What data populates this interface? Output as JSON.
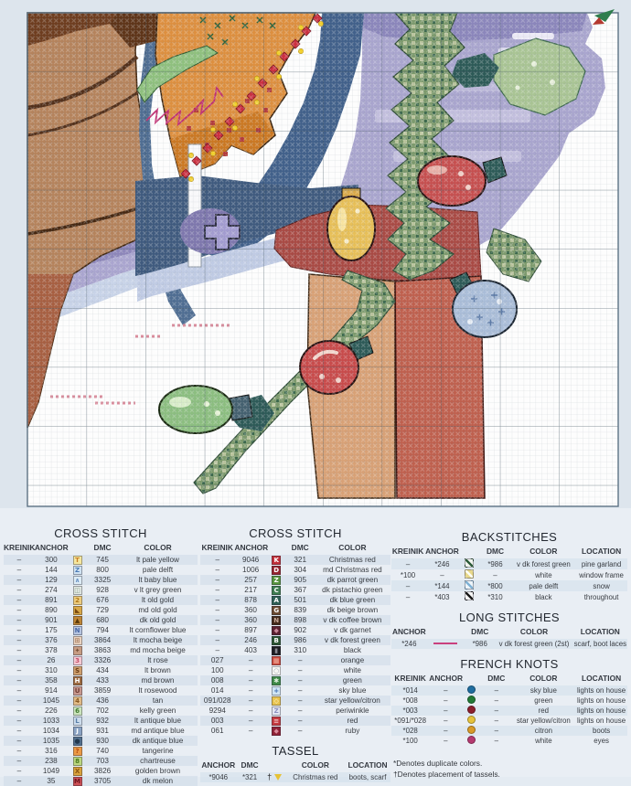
{
  "page_type": "cross stitch pattern leaflet page",
  "pattern": {
    "description": "christmas house corner: tree trunk, lit roof edge, window, pine garland with light bulbs, fence post, snow",
    "corner_marker": "page-corner-arrow",
    "palette": {
      "grid_line": "#6a7a86",
      "grid_major": "#2e4250",
      "snow_white": "#fdfdfd",
      "trunk_brown": "#b5835c",
      "dark_brown": "#6e3d1f",
      "roof_orange": "#dd8f3f",
      "roof_shadow": "#c9751f",
      "steel_blue": "#4f6d92",
      "navy": "#3f5a7e",
      "lavender": "#a9a5ce",
      "periwinkle": "#8b86bb",
      "pale_delft": "#c0cbe4",
      "pine_mid": "#7d9a6d",
      "pine_light": "#b9c49c",
      "pine_dark": "#3c684c",
      "teal": "#2d5a57",
      "maroon": "#a94a44",
      "tan_post": "#d8a176",
      "red_post": "#bf604e",
      "bulb_red": "#c64f4f",
      "bulb_yellow": "#e7bf58",
      "bulb_green": "#8cbe80",
      "bulb_blue": "#aabdd8",
      "string_red": "#cc2f3f",
      "string_yellow": "#f2cf2a",
      "zigzag_magenta": "#bf2f72",
      "pink_marks": "#d98a9a"
    }
  },
  "legend": {
    "cross_stitch_left": {
      "title": "CROSS STITCH",
      "headers": [
        "KREINIK",
        "ANCHOR",
        "",
        "DMC",
        "COLOR"
      ],
      "widths": [
        "16%",
        "17%",
        "10%",
        "16%",
        "41%"
      ],
      "rows": [
        [
          "–",
          "300",
          {
            "s": "T",
            "bg": "#f5e79e",
            "fg": "#c87d28"
          },
          "745",
          "lt pale yellow"
        ],
        [
          "–",
          "144",
          {
            "s": "Z",
            "bg": "#cfe2f2",
            "fg": "#4a7ab5"
          },
          "800",
          "pale delft"
        ],
        [
          "–",
          "129",
          {
            "s": "∧",
            "bg": "#dcebf5",
            "fg": "#6a93c4"
          },
          "3325",
          "lt baby blue"
        ],
        [
          "–",
          "274",
          {
            "s": "◫",
            "bg": "#e3e9e4",
            "fg": "#8aa08f"
          },
          "928",
          "v lt grey green"
        ],
        [
          "–",
          "891",
          {
            "s": "2",
            "bg": "#edcc7e",
            "fg": "#b07818"
          },
          "676",
          "lt old gold"
        ],
        [
          "–",
          "890",
          {
            "s": "◣",
            "bg": "#d9a848",
            "fg": "#7a4a10"
          },
          "729",
          "md old gold"
        ],
        [
          "–",
          "901",
          {
            "s": "▲",
            "bg": "#bf8636",
            "fg": "#5a3808"
          },
          "680",
          "dk old gold"
        ],
        [
          "–",
          "175",
          {
            "s": "N",
            "bg": "#b5c4e0",
            "fg": "#4a6aa8"
          },
          "794",
          "lt cornflower blue"
        ],
        [
          "–",
          "376",
          {
            "s": "⊞",
            "bg": "#e9d2bf",
            "fg": "#a87f62"
          },
          "3864",
          "lt mocha beige"
        ],
        [
          "–",
          "378",
          {
            "s": "✦",
            "bg": "#c79c82",
            "fg": "#7a5238"
          },
          "3863",
          "md mocha beige"
        ],
        [
          "–",
          "26",
          {
            "s": "3",
            "bg": "#f4c9d2",
            "fg": "#c5506a"
          },
          "3326",
          "lt rose"
        ],
        [
          "–",
          "310",
          {
            "s": "S",
            "bg": "#cf9f6d",
            "fg": "#6a3d16"
          },
          "434",
          "lt brown"
        ],
        [
          "–",
          "358",
          {
            "s": "H",
            "bg": "#9c6a40",
            "fg": "#ffffff"
          },
          "433",
          "md brown"
        ],
        [
          "–",
          "914",
          {
            "s": "U",
            "bg": "#c8988e",
            "fg": "#6e3a32"
          },
          "3859",
          "lt rosewood"
        ],
        [
          "–",
          "1045",
          {
            "s": "4",
            "bg": "#e0ba86",
            "fg": "#8a5a22"
          },
          "436",
          "tan"
        ],
        [
          "–",
          "226",
          {
            "s": "6",
            "bg": "#cbe4bc",
            "fg": "#3f7a2e"
          },
          "702",
          "kelly green"
        ],
        [
          "–",
          "1033",
          {
            "s": "L",
            "bg": "#ccdcec",
            "fg": "#5a7fa8"
          },
          "932",
          "lt antique blue"
        ],
        [
          "–",
          "1034",
          {
            "s": "J",
            "bg": "#8aa3c4",
            "fg": "#ffffff"
          },
          "931",
          "md antique blue"
        ],
        [
          "–",
          "1035",
          {
            "s": "●",
            "bg": "#52708e",
            "fg": "#22384e"
          },
          "930",
          "dk antique blue"
        ],
        [
          "–",
          "316",
          {
            "s": "?",
            "bg": "#eb9a46",
            "fg": "#b54a10"
          },
          "740",
          "tangerine"
        ],
        [
          "–",
          "238",
          {
            "s": "8",
            "bg": "#bcd780",
            "fg": "#4a7a1e"
          },
          "703",
          "chartreuse"
        ],
        [
          "–",
          "1049",
          {
            "s": "X",
            "bg": "#d9a23c",
            "fg": "#8a5510"
          },
          "3826",
          "golden brown"
        ],
        [
          "–",
          "35",
          {
            "s": "M",
            "bg": "#cc4f55",
            "fg": "#6e1620"
          },
          "3705",
          "dk melon"
        ]
      ]
    },
    "cross_stitch_mid": {
      "title": "CROSS STITCH",
      "headers": [
        "KREINIK",
        "ANCHOR",
        "",
        "DMC",
        "COLOR"
      ],
      "widths": [
        "18%",
        "17%",
        "10%",
        "15%",
        "40%"
      ],
      "rows": [
        [
          "–",
          "9046",
          {
            "s": "K",
            "bg": "#c2303a",
            "fg": "#ffffff"
          },
          "321",
          "Christmas red"
        ],
        [
          "–",
          "1006",
          {
            "s": "D",
            "bg": "#962530",
            "fg": "#ffffff"
          },
          "304",
          "md Christmas red"
        ],
        [
          "–",
          "257",
          {
            "s": "Z",
            "bg": "#57953f",
            "fg": "#ffffff"
          },
          "905",
          "dk parrot green"
        ],
        [
          "–",
          "217",
          {
            "s": "C",
            "bg": "#3e7d51",
            "fg": "#ffffff"
          },
          "367",
          "dk pistachio green"
        ],
        [
          "–",
          "878",
          {
            "s": "A",
            "bg": "#2e5f55",
            "fg": "#ffffff"
          },
          "501",
          "dk blue green"
        ],
        [
          "–",
          "360",
          {
            "s": "G",
            "bg": "#6b4a31",
            "fg": "#ffffff"
          },
          "839",
          "dk beige brown"
        ],
        [
          "–",
          "360",
          {
            "s": "N",
            "bg": "#43291a",
            "fg": "#c8a898"
          },
          "898",
          "v dk coffee brown"
        ],
        [
          "–",
          "897",
          {
            "s": "◆",
            "bg": "#5c2130",
            "fg": "#c88898"
          },
          "902",
          "v dk garnet"
        ],
        [
          "–",
          "246",
          {
            "s": "B",
            "bg": "#2c5532",
            "fg": "#ffffff"
          },
          "986",
          "v dk forest green"
        ],
        [
          "–",
          "403",
          {
            "s": "▮",
            "bg": "#1e1e22",
            "fg": "#8a8a92"
          },
          "310",
          "black"
        ],
        [
          "027",
          "–",
          {
            "s": "▦",
            "bg": "#cc4a3c",
            "fg": "#f2b5a5"
          },
          "–",
          "orange"
        ],
        [
          "100",
          "–",
          {
            "s": "○",
            "bg": "#f7f7f4",
            "fg": "#9aa2aa"
          },
          "–",
          "white"
        ],
        [
          "008",
          "–",
          {
            "s": "✱",
            "bg": "#3f8a48",
            "fg": "#dff0dd"
          },
          "–",
          "green"
        ],
        [
          "014",
          "–",
          {
            "s": "+",
            "bg": "#cfe4f4",
            "fg": "#3f6fb5"
          },
          "–",
          "sky blue"
        ],
        [
          "091/028",
          "–",
          {
            "s": "◇",
            "bg": "#e9c44f",
            "fg": "#fdf6da"
          },
          "–",
          "star yellow/citron"
        ],
        [
          "9294",
          "–",
          {
            "s": "Z",
            "bg": "#e3e6f2",
            "fg": "#8a90c0"
          },
          "–",
          "periwinkle"
        ],
        [
          "003",
          "–",
          {
            "s": "≡",
            "bg": "#c53a40",
            "fg": "#f2c5c5"
          },
          "–",
          "red"
        ],
        [
          "061",
          "–",
          {
            "s": "◆",
            "bg": "#8f2136",
            "fg": "#d98a9a"
          },
          "–",
          "ruby"
        ]
      ]
    },
    "tassel": {
      "title": "TASSEL",
      "headers": [
        "ANCHOR",
        "DMC",
        "",
        "COLOR",
        "LOCATION"
      ],
      "widths": [
        "19%",
        "14%",
        "12%",
        "31%",
        "24%"
      ],
      "rows": [
        [
          "*9046",
          "*321",
          {
            "tassel": true
          },
          "Christmas red",
          "boots, scarf"
        ]
      ]
    },
    "backstitches": {
      "title": "BACKSTITCHES",
      "headers": [
        "KREINIK",
        "ANCHOR",
        "",
        "DMC",
        "COLOR",
        "LOCATION"
      ],
      "widths": [
        "14%",
        "15%",
        "8%",
        "14%",
        "27%",
        "22%"
      ],
      "rows": [
        [
          "–",
          "*246",
          {
            "bs": "#2d5c3a",
            "bg": "#f2f5f0"
          },
          "*986",
          "v dk forest green",
          "pine garland"
        ],
        [
          "*100",
          "–",
          {
            "bs": "#fdfdf2",
            "bg": "#e8d88a"
          },
          "–",
          "white",
          "window frame"
        ],
        [
          "–",
          "*144",
          {
            "bs": "#7fb2d5",
            "bg": "#eef5fa"
          },
          "*800",
          "pale delft",
          "snow"
        ],
        [
          "–",
          "*403",
          {
            "bs": "#1a1a1a",
            "bg": "#f5f5f5"
          },
          "*310",
          "black",
          "throughout"
        ]
      ]
    },
    "long_stitches": {
      "title": "LONG STITCHES",
      "headers": [
        "ANCHOR",
        "",
        "DMC",
        "COLOR",
        "LOCATION"
      ],
      "widths": [
        "15%",
        "16%",
        "13%",
        "33%",
        "23%"
      ],
      "rows": [
        [
          "*246",
          {
            "hline": "#c9407e"
          },
          "*986",
          "v dk forest green (2st)",
          "scarf, boot laces"
        ]
      ]
    },
    "french_knots": {
      "title": "FRENCH KNOTS",
      "headers": [
        "KREINIK",
        "ANCHOR",
        "",
        "DMC",
        "COLOR",
        "LOCATION"
      ],
      "widths": [
        "16%",
        "14%",
        "8%",
        "13%",
        "27%",
        "22%"
      ],
      "rows": [
        [
          "*014",
          "–",
          {
            "dot": "#1f6da0"
          },
          "–",
          "sky blue",
          "lights on house"
        ],
        [
          "*008",
          "–",
          {
            "dot": "#237a36"
          },
          "–",
          "green",
          "lights on house"
        ],
        [
          "*003",
          "–",
          {
            "dot": "#8c1f2d"
          },
          "–",
          "red",
          "lights on house"
        ],
        [
          "*091/*028",
          "–",
          {
            "dot": "#e5c23c"
          },
          "–",
          "star yellow/citron",
          "lights on house"
        ],
        [
          "*028",
          "–",
          {
            "dot": "#d89a28"
          },
          "–",
          "citron",
          "boots"
        ],
        [
          "*100",
          "–",
          {
            "dot": "#b53a70"
          },
          "–",
          "white",
          "eyes"
        ]
      ]
    },
    "footnotes": {
      "line1": "*Denotes duplicate colors.",
      "line2": "†Denotes placement of tassels."
    }
  }
}
